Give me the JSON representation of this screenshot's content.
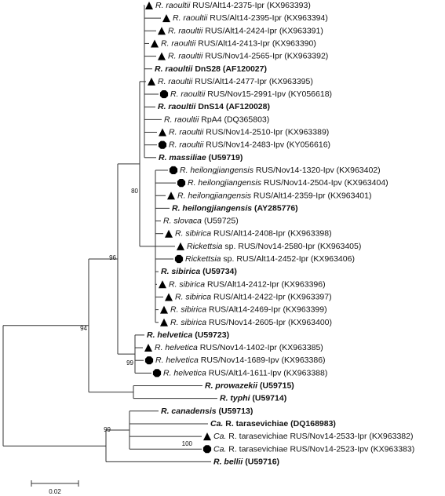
{
  "tree": {
    "leaves": [
      {
        "species": "R. raoultii",
        "rest": " RUS/Alt14-2375-Ipr (KX963393)",
        "marker": "triangle"
      },
      {
        "species": "R. raoultii",
        "rest": " RUS/Alt14-2395-Ipr (KX963394)",
        "marker": "triangle"
      },
      {
        "species": "R. raoultii",
        "rest": " RUS/Alt14-2424-Ipr (KX963391)",
        "marker": "triangle"
      },
      {
        "species": "R. raoultii",
        "rest": " RUS/Alt14-2413-Ipr (KX963390)",
        "marker": "triangle"
      },
      {
        "species": "R. raoultii",
        "rest": " RUS/Nov14-2565-Ipr (KX963392)",
        "marker": "triangle"
      },
      {
        "species": "R. raoultii",
        "rest": " DnS28 (AF120027)",
        "bold": true
      },
      {
        "species": "R. raoultii",
        "rest": " RUS/Alt14-2477-Ipr (KX963395)",
        "marker": "triangle"
      },
      {
        "species": "R. raoultii",
        "rest": " RUS/Nov15-2991-Ipv (KY056618)",
        "marker": "hexagon"
      },
      {
        "species": "R. raoultii",
        "rest": " DnS14 (AF120028)",
        "bold": true
      },
      {
        "species": "R. raoultii",
        "rest": " RpA4 (DQ365803)"
      },
      {
        "species": "R. raoultii",
        "rest": " RUS/Nov14-2510-Ipr (KX963389)",
        "marker": "triangle"
      },
      {
        "species": "R. raoultii",
        "rest": " RUS/Nov14-2483-Ipv (KY056616)",
        "marker": "hexagon"
      },
      {
        "species": "R. massiliae",
        "rest": " (U59719)",
        "bold": true
      },
      {
        "species": "R. heilongjiangensis",
        "rest": " RUS/Nov14-1320-Ipv (KX963402)",
        "marker": "hexagon"
      },
      {
        "species": "R. heilongjiangensis",
        "rest": " RUS/Nov14-2504-Ipv (KX963404)",
        "marker": "hexagon"
      },
      {
        "species": "R. heilongjiangensis",
        "rest": " RUS/Alt14-2359-Ipr (KX963401)",
        "marker": "triangle"
      },
      {
        "species": "R. heilongjiangensis",
        "rest": " (AY285776)",
        "bold": true
      },
      {
        "species": "R. slovaca",
        "rest": " (U59725)"
      },
      {
        "species": "R. sibirica",
        "rest": " RUS/Alt14-2408-Ipr (KX963398)",
        "marker": "triangle"
      },
      {
        "species": "Rickettsia",
        "rest": " sp. RUS/Nov14-2580-Ipr (KX963405)",
        "marker": "triangle"
      },
      {
        "species": "Rickettsia",
        "rest": " sp. RUS/Alt14-2452-Ipr (KX963406)",
        "marker": "hexagon"
      },
      {
        "species": "R. sibirica",
        "rest": " (U59734)",
        "bold": true
      },
      {
        "species": "R. sibirica",
        "rest": " RUS/Alt14-2412-Ipr (KX963396)",
        "marker": "triangle"
      },
      {
        "species": "R. sibirica",
        "rest": " RUS/Alt14-2422-Ipr (KX963397)",
        "marker": "triangle"
      },
      {
        "species": "R. sibirica",
        "rest": " RUS/Alt14-2469-Ipr (KX963399)",
        "marker": "triangle"
      },
      {
        "species": "R. sibirica",
        "rest": " RUS/Nov14-2605-Ipr (KX963400)",
        "marker": "triangle"
      },
      {
        "species": "R. helvetica",
        "rest": " (U59723)",
        "bold": true
      },
      {
        "species": "R. helvetica",
        "rest": " RUS/Nov14-1402-Ipr (KX963385)",
        "marker": "triangle"
      },
      {
        "species": "R. helvetica",
        "rest": " RUS/Nov14-1689-Ipv (KX963386)",
        "marker": "hexagon"
      },
      {
        "species": "R. helvetica",
        "rest": " RUS/Alt14-1611-Ipv (KX963388)",
        "marker": "hexagon"
      },
      {
        "species": "R. prowazekii",
        "rest": " (U59715)",
        "bold": true
      },
      {
        "species": "R. typhi",
        "rest": " (U59714)",
        "bold": true
      },
      {
        "species": "R. canadensis",
        "rest": " (U59713)",
        "bold": true
      },
      {
        "species": "Ca.",
        "rest": " R. tarasevichiae (DQ168983)",
        "bold": true
      },
      {
        "species": "Ca.",
        "rest": " R. tarasevichiae RUS/Nov14-2533-Ipr (KX963382)",
        "marker": "triangle"
      },
      {
        "species": "Ca.",
        "rest": " R. tarasevichiae RUS/Nov14-2523-Ipv (KX963383)",
        "marker": "hexagon"
      },
      {
        "species": "R. bellii",
        "rest": " (U59716)",
        "bold": true
      }
    ],
    "bootstrap": [
      80,
      96,
      94,
      99,
      99,
      100
    ],
    "scale": "0.02"
  }
}
